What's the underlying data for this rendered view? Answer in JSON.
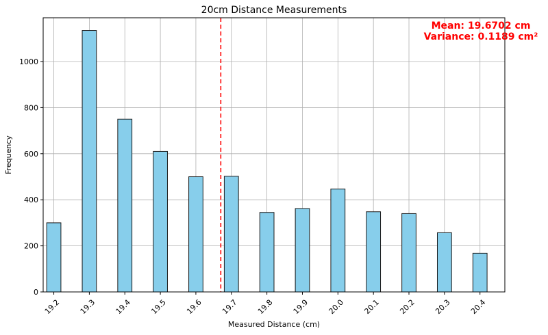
{
  "chart_data": {
    "type": "bar",
    "title": "20cm Distance Measurements",
    "xlabel": "Measured Distance (cm)",
    "ylabel": "Frequency",
    "categories": [
      "19.2",
      "19.3",
      "19.4",
      "19.5",
      "19.6",
      "19.7",
      "19.8",
      "19.9",
      "20.0",
      "20.1",
      "20.2",
      "20.3",
      "20.4"
    ],
    "x": [
      19.2,
      19.3,
      19.4,
      19.5,
      19.6,
      19.7,
      19.8,
      19.9,
      20.0,
      20.1,
      20.2,
      20.3,
      20.4
    ],
    "values": [
      300,
      1135,
      750,
      610,
      500,
      502,
      345,
      362,
      447,
      348,
      340,
      257,
      168
    ],
    "ylim": [
      0,
      1190
    ],
    "xlim": [
      19.17,
      20.47
    ],
    "yticks": [
      0,
      200,
      400,
      600,
      800,
      1000
    ],
    "ytick_labels": [
      "0",
      "200",
      "400",
      "600",
      "800",
      "1000"
    ],
    "grid": true,
    "mean_line": 19.6702,
    "annotations": [
      "Mean: 19.6702 cm",
      "Variance: 0.1189 cm²"
    ],
    "colors": {
      "bar_fill": "#87ceeb",
      "bar_edge": "#1a1a1a",
      "mean_line": "#ff0000",
      "annotation": "#ff0000",
      "grid": "#b0b0b0"
    }
  }
}
